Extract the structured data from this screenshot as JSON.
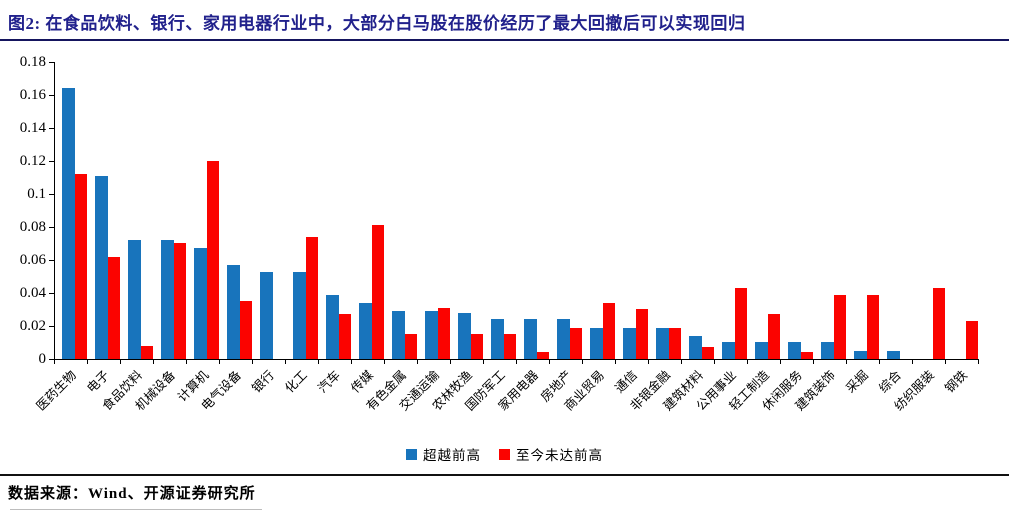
{
  "header": {
    "title": "图2: 在食品饮料、银行、家用电器行业中，大部分白马股在股价经历了最大回撤后可以实现回归"
  },
  "footer": {
    "source": "数据来源：Wind、开源证券研究所"
  },
  "colors": {
    "title": "#21218C",
    "header_rule": "#15155E",
    "series_blue": "#1874BC",
    "series_red": "#FB0300",
    "axis": "#000000"
  },
  "chart_data": {
    "type": "bar",
    "title": "图2: 在食品饮料、银行、家用电器行业中，大部分白马股在股价经历了最大回撤后可以实现回归",
    "xlabel": "",
    "ylabel": "",
    "ylim": [
      0,
      0.18
    ],
    "ytick_step": 0.02,
    "ytick_labels": [
      "0",
      "0.02",
      "0.04",
      "0.06",
      "0.08",
      "0.1",
      "0.12",
      "0.14",
      "0.16",
      "0.18"
    ],
    "grid": false,
    "legend_position": "bottom",
    "categories": [
      "医药生物",
      "电子",
      "食品饮料",
      "机械设备",
      "计算机",
      "电气设备",
      "银行",
      "化工",
      "汽车",
      "传媒",
      "有色金属",
      "交通运输",
      "农林牧渔",
      "国防军工",
      "家用电器",
      "房地产",
      "商业贸易",
      "通信",
      "非银金融",
      "建筑材料",
      "公用事业",
      "轻工制造",
      "休闲服务",
      "建筑装饰",
      "采掘",
      "综合",
      "纺织服装",
      "钢铁"
    ],
    "series": [
      {
        "name": "超越前高",
        "color": "#1874BC",
        "values": [
          0.164,
          0.111,
          0.072,
          0.072,
          0.067,
          0.057,
          0.053,
          0.053,
          0.039,
          0.034,
          0.029,
          0.029,
          0.028,
          0.024,
          0.024,
          0.024,
          0.019,
          0.019,
          0.019,
          0.014,
          0.01,
          0.01,
          0.01,
          0.01,
          0.005,
          0.005,
          0,
          0
        ]
      },
      {
        "name": "至今未达前高",
        "color": "#FB0300",
        "values": [
          0.112,
          0.062,
          0.008,
          0.07,
          0.12,
          0.035,
          0,
          0.074,
          0.027,
          0.081,
          0.015,
          0.031,
          0.015,
          0.015,
          0.004,
          0.019,
          0.034,
          0.03,
          0.019,
          0.007,
          0.043,
          0.027,
          0.004,
          0.039,
          0.039,
          0,
          0.043,
          0.023
        ]
      }
    ]
  }
}
